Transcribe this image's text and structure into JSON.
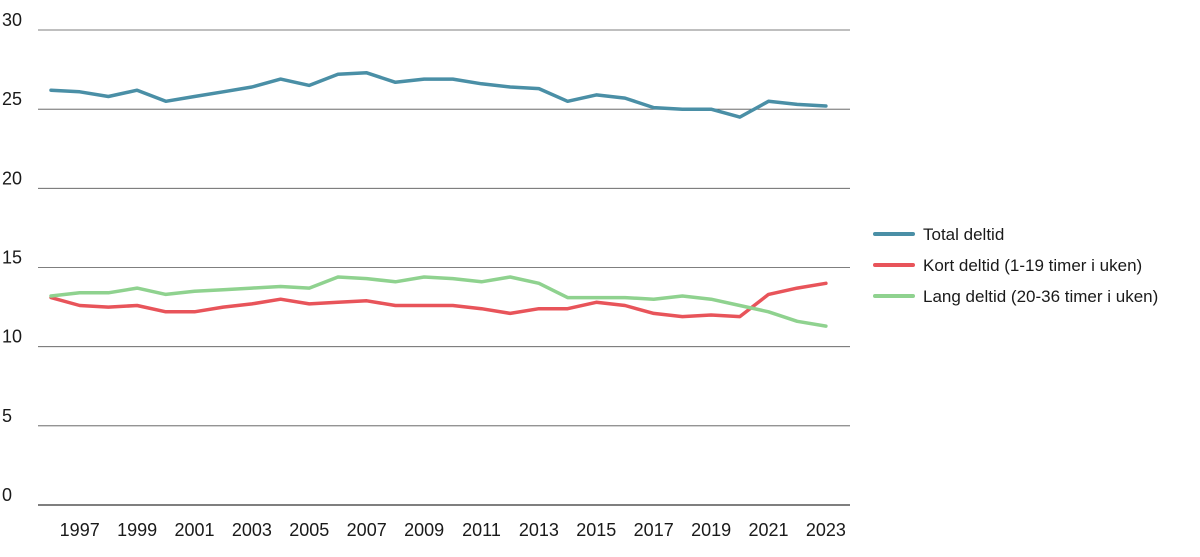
{
  "chart_data": {
    "type": "line",
    "title": "",
    "xlabel": "",
    "ylabel": "",
    "x": [
      1996,
      1997,
      1998,
      1999,
      2000,
      2001,
      2002,
      2003,
      2004,
      2005,
      2006,
      2007,
      2008,
      2009,
      2010,
      2011,
      2012,
      2013,
      2014,
      2015,
      2016,
      2017,
      2018,
      2019,
      2020,
      2021,
      2022,
      2023
    ],
    "x_tick_labels": [
      "1997",
      "1999",
      "2001",
      "2003",
      "2005",
      "2007",
      "2009",
      "2011",
      "2013",
      "2015",
      "2017",
      "2019",
      "2021",
      "2023"
    ],
    "y_tick_labels": [
      "0",
      "5",
      "10",
      "15",
      "20",
      "25",
      "30"
    ],
    "ylim": [
      0,
      30
    ],
    "grid": "horizontal",
    "legend_position": "right",
    "series": [
      {
        "name": "Total deltid",
        "color": "#4a8fa6",
        "values": [
          26.2,
          26.1,
          25.8,
          26.2,
          25.5,
          25.8,
          26.1,
          26.4,
          26.9,
          26.5,
          27.2,
          27.3,
          26.7,
          26.9,
          26.9,
          26.6,
          26.4,
          26.3,
          25.5,
          25.9,
          25.7,
          25.1,
          25.0,
          25.0,
          24.5,
          25.5,
          25.3,
          25.2
        ]
      },
      {
        "name": "Kort deltid (1-19 timer i uken)",
        "color": "#e8545a",
        "values": [
          13.1,
          12.6,
          12.5,
          12.6,
          12.2,
          12.2,
          12.5,
          12.7,
          13.0,
          12.7,
          12.8,
          12.9,
          12.6,
          12.6,
          12.6,
          12.4,
          12.1,
          12.4,
          12.4,
          12.8,
          12.6,
          12.1,
          11.9,
          12.0,
          11.9,
          13.3,
          13.7,
          14.0
        ]
      },
      {
        "name": "Lang deltid (20-36 timer i uken)",
        "color": "#8fd28f",
        "values": [
          13.2,
          13.4,
          13.4,
          13.7,
          13.3,
          13.5,
          13.6,
          13.7,
          13.8,
          13.7,
          14.4,
          14.3,
          14.1,
          14.4,
          14.3,
          14.1,
          14.4,
          14.0,
          13.1,
          13.1,
          13.1,
          13.0,
          13.2,
          13.0,
          12.6,
          12.2,
          11.6,
          11.3
        ]
      }
    ]
  }
}
